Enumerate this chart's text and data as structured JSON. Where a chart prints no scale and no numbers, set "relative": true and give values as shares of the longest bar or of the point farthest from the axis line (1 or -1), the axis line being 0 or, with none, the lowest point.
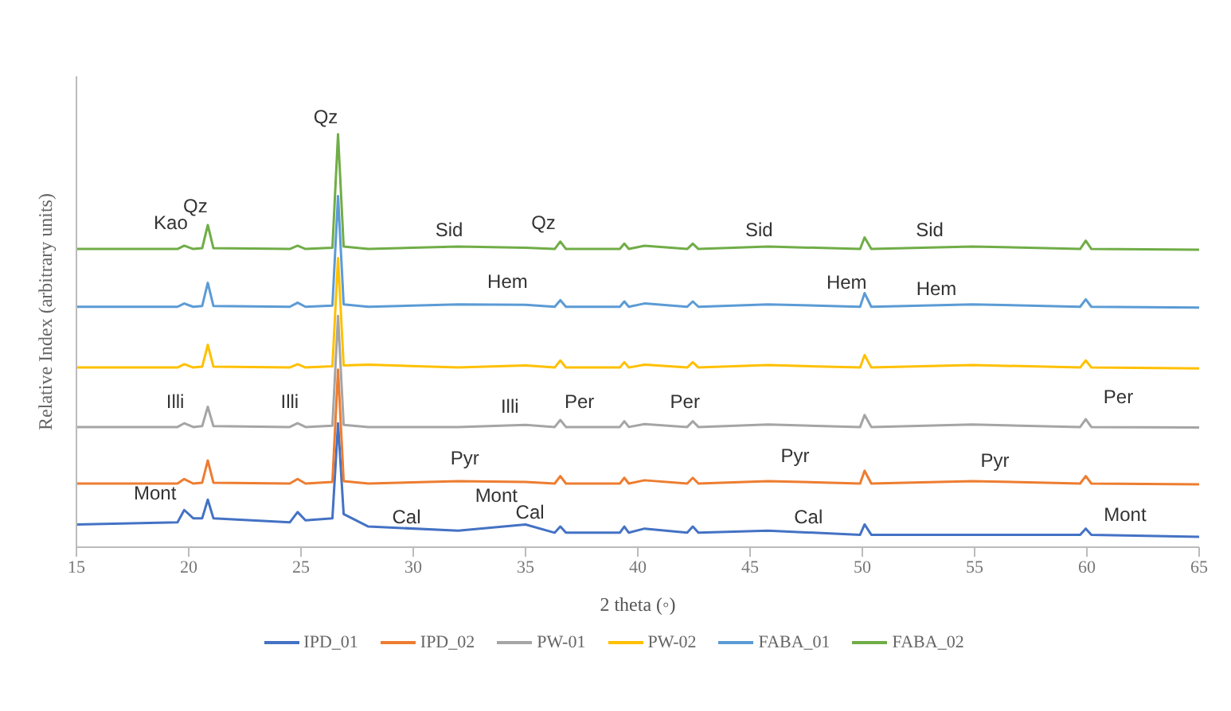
{
  "chart_data": {
    "type": "line",
    "relative": true,
    "xlabel": "2 theta (◦)",
    "ylabel": "Relative Index (arbitrary units)",
    "xlim": [
      15,
      65
    ],
    "xticks": [
      15,
      20,
      25,
      30,
      35,
      40,
      45,
      50,
      55,
      60,
      65
    ],
    "legend": "bottom",
    "marker": "none",
    "grid": false,
    "x": [
      15,
      19.5,
      19.8,
      20.2,
      20.6,
      20.85,
      21.1,
      24.5,
      24.85,
      25.2,
      26.4,
      26.65,
      26.9,
      28,
      32,
      35,
      36.3,
      36.55,
      36.8,
      39.2,
      39.4,
      39.6,
      40.3,
      42.2,
      42.45,
      42.7,
      45.8,
      49.9,
      50.1,
      50.4,
      54.9,
      59.7,
      59.95,
      60.2,
      65
    ],
    "series": [
      {
        "name": "IPD_01",
        "color": "#4472c4",
        "values": [
          0.055,
          0.06,
          0.09,
          0.07,
          0.07,
          0.115,
          0.07,
          0.06,
          0.085,
          0.065,
          0.07,
          0.3,
          0.08,
          0.05,
          0.04,
          0.055,
          0.035,
          0.05,
          0.035,
          0.035,
          0.05,
          0.035,
          0.045,
          0.035,
          0.05,
          0.035,
          0.04,
          0.03,
          0.055,
          0.03,
          0.03,
          0.03,
          0.045,
          0.03,
          0.025
        ]
      },
      {
        "name": "IPD_02",
        "color": "#ed7d31",
        "values": [
          0.154,
          0.154,
          0.165,
          0.154,
          0.156,
          0.21,
          0.156,
          0.154,
          0.165,
          0.154,
          0.158,
          0.43,
          0.16,
          0.154,
          0.16,
          0.158,
          0.154,
          0.172,
          0.154,
          0.154,
          0.168,
          0.154,
          0.162,
          0.154,
          0.168,
          0.154,
          0.16,
          0.154,
          0.185,
          0.154,
          0.16,
          0.154,
          0.172,
          0.154,
          0.152
        ]
      },
      {
        "name": "PW-01",
        "color": "#a5a5a5",
        "values": [
          0.291,
          0.291,
          0.3,
          0.291,
          0.293,
          0.34,
          0.293,
          0.291,
          0.3,
          0.291,
          0.294,
          0.56,
          0.296,
          0.291,
          0.291,
          0.296,
          0.291,
          0.308,
          0.291,
          0.291,
          0.305,
          0.291,
          0.298,
          0.291,
          0.305,
          0.291,
          0.297,
          0.291,
          0.32,
          0.291,
          0.297,
          0.291,
          0.31,
          0.291,
          0.29
        ]
      },
      {
        "name": "PW-02",
        "color": "#ffc000",
        "values": [
          0.435,
          0.435,
          0.443,
          0.435,
          0.437,
          0.49,
          0.437,
          0.435,
          0.443,
          0.435,
          0.438,
          0.7,
          0.44,
          0.442,
          0.435,
          0.44,
          0.435,
          0.452,
          0.435,
          0.435,
          0.448,
          0.435,
          0.442,
          0.435,
          0.448,
          0.435,
          0.441,
          0.435,
          0.465,
          0.435,
          0.441,
          0.435,
          0.452,
          0.435,
          0.433
        ]
      },
      {
        "name": "FABA_01",
        "color": "#5b9bd5",
        "values": [
          0.582,
          0.582,
          0.59,
          0.582,
          0.584,
          0.64,
          0.584,
          0.582,
          0.592,
          0.582,
          0.585,
          0.85,
          0.588,
          0.582,
          0.588,
          0.587,
          0.582,
          0.598,
          0.582,
          0.582,
          0.595,
          0.582,
          0.59,
          0.582,
          0.595,
          0.582,
          0.588,
          0.582,
          0.615,
          0.582,
          0.588,
          0.582,
          0.6,
          0.582,
          0.58
        ]
      },
      {
        "name": "FABA_02",
        "color": "#70ad47",
        "values": [
          0.722,
          0.722,
          0.73,
          0.722,
          0.724,
          0.78,
          0.724,
          0.722,
          0.73,
          0.722,
          0.725,
          1.0,
          0.728,
          0.722,
          0.728,
          0.725,
          0.722,
          0.74,
          0.722,
          0.722,
          0.735,
          0.722,
          0.73,
          0.722,
          0.735,
          0.722,
          0.728,
          0.722,
          0.75,
          0.722,
          0.728,
          0.722,
          0.742,
          0.722,
          0.72
        ]
      }
    ],
    "annotations": [
      "Kao",
      "Qz",
      "Qz",
      "Sid",
      "Qz",
      "Sid",
      "Sid",
      "Hem",
      "Hem",
      "Hem",
      "Illi",
      "Illi",
      "Illi",
      "Per",
      "Per",
      "Per",
      "Pyr",
      "Pyr",
      "Pyr",
      "Mont",
      "Mont",
      "Cal",
      "Cal",
      "Cal",
      "Mont"
    ]
  }
}
